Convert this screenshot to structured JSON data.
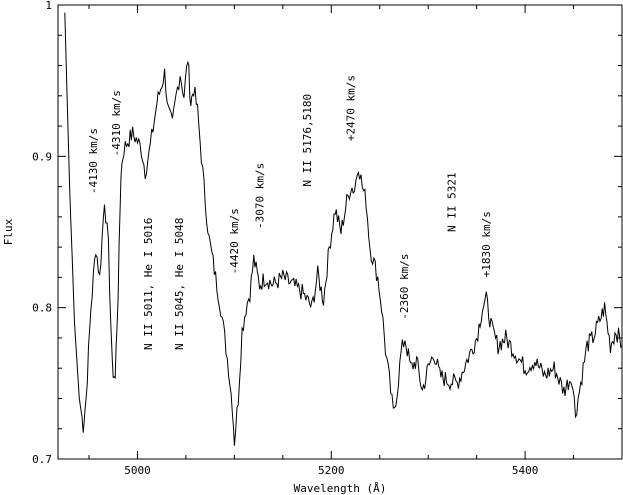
{
  "chart_data": {
    "type": "line",
    "xlabel": "Wavelength (Å)",
    "ylabel": "Flux",
    "xlim": [
      4918,
      5500
    ],
    "ylim": [
      0.7,
      1.0
    ],
    "x_ticks": [
      5000,
      5200,
      5400
    ],
    "y_ticks": [
      0.7,
      0.8,
      0.9,
      1
    ],
    "y_tick_labels": [
      "0.7",
      "0.8",
      "0.9",
      "1"
    ],
    "grid": false,
    "series": [
      {
        "x": [
          4925,
          4930,
          4935,
          4940,
          4944,
          4947,
          4952,
          4957,
          4961,
          4966,
          4970,
          4974,
          4977,
          4980,
          4983,
          4986,
          4990,
          4995,
          5000,
          5004,
          5008,
          5012,
          5016,
          5020,
          5024,
          5028,
          5032,
          5036,
          5040,
          5044,
          5048,
          5052,
          5055,
          5058,
          5062,
          5066,
          5070,
          5074,
          5078,
          5082,
          5086,
          5090,
          5094,
          5098,
          5100,
          5104,
          5108,
          5112,
          5116,
          5120,
          5126,
          5132,
          5140,
          5150,
          5160,
          5170,
          5180,
          5186,
          5192,
          5198,
          5204,
          5210,
          5216,
          5220,
          5224,
          5228,
          5232,
          5236,
          5240,
          5244,
          5248,
          5252,
          5256,
          5260,
          5264,
          5268,
          5272,
          5276,
          5282,
          5288,
          5294,
          5300,
          5306,
          5312,
          5320,
          5330,
          5340,
          5350,
          5356,
          5360,
          5366,
          5372,
          5380,
          5390,
          5400,
          5410,
          5420,
          5430,
          5440,
          5448,
          5452,
          5456,
          5460,
          5464,
          5470,
          5476,
          5482,
          5488,
          5494,
          5500
        ],
        "y": [
          0.995,
          0.88,
          0.79,
          0.74,
          0.722,
          0.74,
          0.8,
          0.84,
          0.82,
          0.872,
          0.84,
          0.76,
          0.753,
          0.81,
          0.89,
          0.905,
          0.91,
          0.915,
          0.91,
          0.905,
          0.89,
          0.902,
          0.918,
          0.935,
          0.945,
          0.955,
          0.93,
          0.92,
          0.94,
          0.955,
          0.94,
          0.965,
          0.935,
          0.945,
          0.93,
          0.9,
          0.87,
          0.845,
          0.83,
          0.815,
          0.8,
          0.78,
          0.76,
          0.735,
          0.712,
          0.74,
          0.785,
          0.8,
          0.81,
          0.832,
          0.815,
          0.82,
          0.815,
          0.82,
          0.815,
          0.81,
          0.8,
          0.822,
          0.805,
          0.84,
          0.865,
          0.85,
          0.87,
          0.88,
          0.878,
          0.895,
          0.88,
          0.87,
          0.84,
          0.83,
          0.82,
          0.8,
          0.772,
          0.752,
          0.73,
          0.745,
          0.77,
          0.78,
          0.76,
          0.765,
          0.745,
          0.76,
          0.77,
          0.755,
          0.752,
          0.75,
          0.765,
          0.78,
          0.8,
          0.805,
          0.785,
          0.775,
          0.78,
          0.77,
          0.76,
          0.765,
          0.755,
          0.76,
          0.745,
          0.755,
          0.73,
          0.745,
          0.76,
          0.775,
          0.78,
          0.79,
          0.8,
          0.775,
          0.785,
          0.775
        ]
      }
    ],
    "annotations": [
      {
        "text": "-4130 km/s",
        "x": 4958,
        "y": 0.875,
        "rotate": true
      },
      {
        "text": "-4310 km/s",
        "x": 4982,
        "y": 0.9,
        "rotate": true
      },
      {
        "text": "N II 5011, He I 5016",
        "x": 5015,
        "y": 0.772,
        "rotate": true
      },
      {
        "text": "N II 5045, He I 5048",
        "x": 5047,
        "y": 0.772,
        "rotate": true
      },
      {
        "text": "-4420 km/s",
        "x": 5104,
        "y": 0.822,
        "rotate": true
      },
      {
        "text": "-3070 km/s",
        "x": 5130,
        "y": 0.852,
        "rotate": true
      },
      {
        "text": "N II 5176,5180",
        "x": 5179,
        "y": 0.88,
        "rotate": true
      },
      {
        "text": "+2470 km/s",
        "x": 5224,
        "y": 0.91,
        "rotate": true
      },
      {
        "text": "-2360 km/s",
        "x": 5279,
        "y": 0.792,
        "rotate": true
      },
      {
        "text": "N II 5321",
        "x": 5328,
        "y": 0.85,
        "rotate": true
      },
      {
        "text": "+1830 km/s",
        "x": 5364,
        "y": 0.82,
        "rotate": true
      }
    ]
  }
}
